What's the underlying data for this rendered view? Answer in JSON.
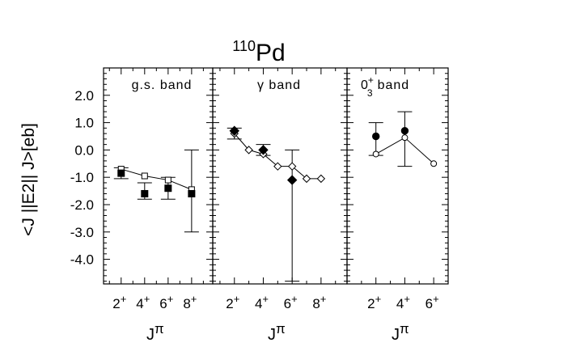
{
  "chart_data": {
    "type": "scatter",
    "title": {
      "mass_number": "110",
      "element": "Pd"
    },
    "ylabel": "<J ||E2|| J>[eb]",
    "ylim": [
      -4.9,
      3.0
    ],
    "yticks": [
      "2.0",
      "1.0",
      "0.0",
      "-1.0",
      "-2.0",
      "-3.0",
      "-4.0"
    ],
    "panels": [
      {
        "name": "gs",
        "label": "g.s. band",
        "xlabel_base": "J",
        "xlabel_sup": "π",
        "xlim": [
          0.5,
          9.8
        ],
        "x_tick_labels": [
          {
            "x": 2,
            "text": "2",
            "sup": "+"
          },
          {
            "x": 4,
            "text": "4",
            "sup": "+"
          },
          {
            "x": 6,
            "text": "6",
            "sup": "+"
          },
          {
            "x": 8,
            "text": "8",
            "sup": "+"
          }
        ],
        "theory": {
          "marker": "open-square",
          "x": [
            2,
            4,
            6,
            8
          ],
          "y": [
            -0.7,
            -0.95,
            -1.1,
            -1.45
          ]
        },
        "experiment": {
          "marker": "filled-square",
          "points": [
            {
              "x": 2,
              "y": -0.85,
              "lo": -1.05,
              "hi": -0.65
            },
            {
              "x": 4,
              "y": -1.6,
              "lo": -1.8,
              "hi": -1.2
            },
            {
              "x": 6,
              "y": -1.4,
              "lo": -1.8,
              "hi": -1.0
            },
            {
              "x": 8,
              "y": -1.6,
              "lo": -3.0,
              "hi": 0.0
            }
          ]
        }
      },
      {
        "name": "gamma",
        "label": "γ band",
        "xlabel_base": "J",
        "xlabel_sup": "π",
        "xlim": [
          0.5,
          9.8
        ],
        "x_tick_labels": [
          {
            "x": 2,
            "text": "2",
            "sup": "+"
          },
          {
            "x": 4,
            "text": "4",
            "sup": "+"
          },
          {
            "x": 6,
            "text": "6",
            "sup": "+"
          },
          {
            "x": 8,
            "text": "8",
            "sup": "+"
          }
        ],
        "theory": {
          "marker": "open-diamond",
          "x": [
            2,
            3,
            4,
            5,
            6,
            7,
            8
          ],
          "y": [
            0.6,
            0.0,
            -0.15,
            -0.6,
            -0.6,
            -1.05,
            -1.05
          ]
        },
        "experiment": {
          "marker": "filled-diamond",
          "points": [
            {
              "x": 2,
              "y": 0.7,
              "lo": 0.4,
              "hi": 0.8
            },
            {
              "x": 4,
              "y": 0.0,
              "lo": -0.2,
              "hi": 0.2
            },
            {
              "x": 6,
              "y": -1.1,
              "lo": -4.8,
              "hi": 0.0
            }
          ]
        }
      },
      {
        "name": "zero3",
        "label_base": "0",
        "label_sup": "+",
        "label_sub": "3",
        "label_rest": "band",
        "xlabel_base": "J",
        "xlabel_sup": "π",
        "xlim": [
          0.0,
          7.0
        ],
        "x_tick_labels": [
          {
            "x": 2,
            "text": "2",
            "sup": "+"
          },
          {
            "x": 4,
            "text": "4",
            "sup": "+"
          },
          {
            "x": 6,
            "text": "6",
            "sup": "+"
          }
        ],
        "theory": {
          "marker": "open-circle",
          "x": [
            2,
            4,
            6
          ],
          "y": [
            -0.15,
            0.45,
            -0.5
          ]
        },
        "experiment": {
          "marker": "filled-circle",
          "points": [
            {
              "x": 2,
              "y": 0.5,
              "lo": -0.2,
              "hi": 1.0
            },
            {
              "x": 4,
              "y": 0.7,
              "lo": -0.6,
              "hi": 1.4
            }
          ]
        }
      }
    ]
  }
}
